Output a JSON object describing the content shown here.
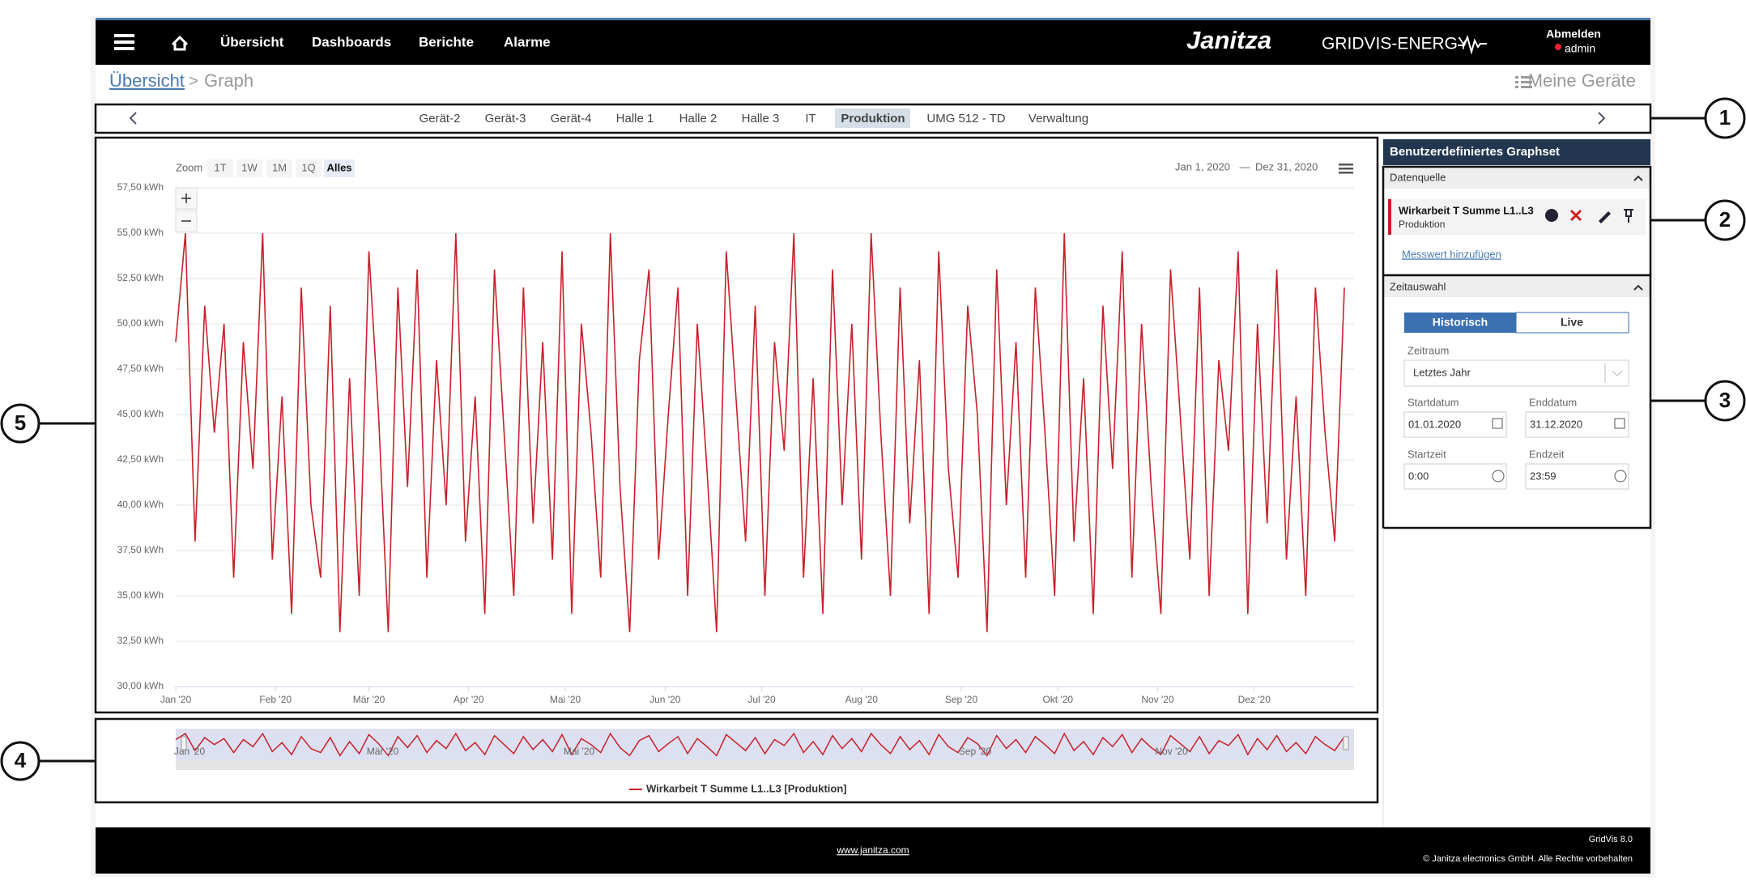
{
  "nav": {
    "items": [
      "Übersicht",
      "Dashboards",
      "Berichte",
      "Alarme"
    ],
    "brand": "Janitza",
    "product": "GRIDVIS-ENERGY",
    "logout": "Abmelden",
    "user": "admin"
  },
  "breadcrumb": {
    "home": "Übersicht",
    "separator": ">",
    "current": "Graph",
    "devices": "Meine Geräte"
  },
  "tabs": [
    "Gerät-2",
    "Gerät-3",
    "Gerät-4",
    "Halle 1",
    "Halle 2",
    "Halle 3",
    "IT",
    "Produktion",
    "UMG 512 - TD",
    "Verwaltung"
  ],
  "chart_data": {
    "type": "line",
    "zoom": {
      "label": "Zoom",
      "buttons": [
        "1T",
        "1W",
        "1M",
        "1Q",
        "Alles"
      ]
    },
    "range": {
      "from": "Jan 1, 2020",
      "separator": "—",
      "to": "Dez 31, 2020"
    },
    "x": [
      0,
      3,
      6,
      9,
      12,
      15,
      18,
      21,
      24,
      27,
      30,
      33,
      36,
      39,
      42,
      45,
      48,
      51,
      54,
      57,
      60,
      63,
      66,
      69,
      72,
      75,
      78,
      81,
      84,
      87,
      90,
      93,
      96,
      99,
      102,
      105,
      108,
      111,
      114,
      117,
      120,
      123,
      126,
      129,
      132,
      135,
      138,
      141,
      144,
      147,
      150,
      153,
      156,
      159,
      162,
      165,
      168,
      171,
      174,
      177,
      180,
      183,
      186,
      189,
      192,
      195,
      198,
      201,
      204,
      207,
      210,
      213,
      216,
      219,
      222,
      225,
      228,
      231,
      234,
      237,
      240,
      243,
      246,
      249,
      252,
      255,
      258,
      261,
      264,
      267,
      270,
      273,
      276,
      279,
      282,
      285,
      288,
      291,
      294,
      297,
      300,
      303,
      306,
      309,
      312,
      315,
      318,
      321,
      324,
      327,
      330,
      333,
      336,
      339,
      342,
      345,
      348,
      351,
      354,
      357,
      360,
      363
    ],
    "series": [
      {
        "name": "Wirkarbeit T Summe L1..L3 [Produktion]",
        "color": "#c8202a",
        "values": [
          49,
          55,
          38,
          51,
          44,
          50,
          36,
          49,
          42,
          55,
          37,
          46,
          34,
          52,
          40,
          36,
          51,
          33,
          47,
          35,
          54,
          45,
          33,
          52,
          41,
          53,
          36,
          48,
          40,
          55,
          38,
          46,
          34,
          53,
          44,
          35,
          52,
          39,
          49,
          37,
          54,
          34,
          50,
          44,
          36,
          55,
          41,
          33,
          48,
          53,
          37,
          45,
          52,
          35,
          50,
          42,
          33,
          54,
          46,
          38,
          51,
          35,
          49,
          43,
          55,
          36,
          47,
          34,
          53,
          40,
          50,
          37,
          55,
          44,
          35,
          52,
          39,
          48,
          34,
          54,
          42,
          36,
          51,
          45,
          33,
          53,
          40,
          49,
          36,
          52,
          44,
          35,
          55,
          38,
          47,
          34,
          51,
          42,
          54,
          36,
          50,
          41,
          34,
          53,
          45,
          37,
          52,
          35,
          48,
          43,
          54,
          34,
          50,
          39,
          53,
          37,
          46,
          35,
          52,
          44,
          38,
          52
        ]
      }
    ],
    "xlim": [
      0,
      366
    ],
    "xticks": [
      {
        "value": 0,
        "label": "Jan '20"
      },
      {
        "value": 31,
        "label": "Feb '20"
      },
      {
        "value": 60,
        "label": "Mär '20"
      },
      {
        "value": 91,
        "label": "Apr '20"
      },
      {
        "value": 121,
        "label": "Mai '20"
      },
      {
        "value": 152,
        "label": "Jun '20"
      },
      {
        "value": 182,
        "label": "Jul '20"
      },
      {
        "value": 213,
        "label": "Aug '20"
      },
      {
        "value": 244,
        "label": "Sep '20"
      },
      {
        "value": 274,
        "label": "Okt '20"
      },
      {
        "value": 305,
        "label": "Nov '20"
      },
      {
        "value": 335,
        "label": "Dez '20"
      }
    ],
    "ylim": [
      30,
      57.5
    ],
    "yticks": [
      {
        "value": 30,
        "label": "30,00 kWh"
      },
      {
        "value": 32.5,
        "label": "32,50 kWh"
      },
      {
        "value": 35,
        "label": "35,00 kWh"
      },
      {
        "value": 37.5,
        "label": "37,50 kWh"
      },
      {
        "value": 40,
        "label": "40,00 kWh"
      },
      {
        "value": 42.5,
        "label": "42,50 kWh"
      },
      {
        "value": 45,
        "label": "45,00 kWh"
      },
      {
        "value": 47.5,
        "label": "47,50 kWh"
      },
      {
        "value": 50,
        "label": "50,00 kWh"
      },
      {
        "value": 52.5,
        "label": "52,50 kWh"
      },
      {
        "value": 55,
        "label": "55,00 kWh"
      },
      {
        "value": 57.5,
        "label": "57,50 kWh"
      }
    ],
    "grid": true,
    "navigator_xticks": [
      {
        "value": 0,
        "label": "Jan '20"
      },
      {
        "value": 60,
        "label": "Mär '20"
      },
      {
        "value": 121,
        "label": "Mai '20"
      },
      {
        "value": 244,
        "label": "Sep '20"
      },
      {
        "value": 305,
        "label": "Nov '20"
      }
    ]
  },
  "panel": {
    "title": "Benutzerdefiniertes Graphset",
    "source": {
      "title": "Datenquelle",
      "item": "Wirkarbeit T Summe L1..L3",
      "device": "Produktion",
      "add": "Messwert hinzufügen"
    },
    "time": {
      "title": "Zeitauswahl",
      "historic": "Historisch",
      "live": "Live",
      "period_label": "Zeitraum",
      "period": "Letztes Jahr",
      "start_date_label": "Startdatum",
      "end_date_label": "Enddatum",
      "start_date": "01.01.2020",
      "end_date": "31.12.2020",
      "start_time_label": "Startzeit",
      "end_time_label": "Endzeit",
      "start_time": "0:00",
      "end_time": "23:59"
    }
  },
  "footer": {
    "link": "www.janitza.com",
    "version": "GridVis 8.0",
    "copyright": "© Janitza electronics GmbH. Alle Rechte vorbehalten"
  },
  "callouts": [
    "1",
    "2",
    "3",
    "4",
    "5"
  ]
}
